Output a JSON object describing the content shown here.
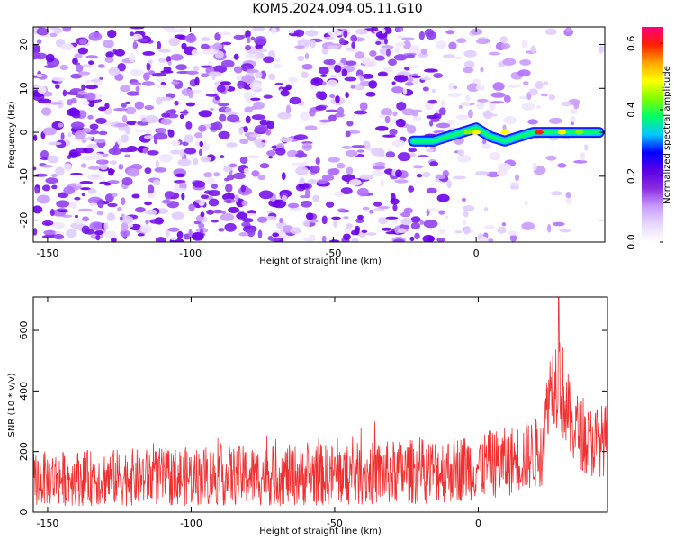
{
  "title": "KOM5.2024.094.05.11.G10",
  "chart_data": [
    {
      "type": "heatmap",
      "xlabel": "Height of straight line (km)",
      "ylabel": "Frequency (Hz)",
      "xlim": [
        -155,
        45
      ],
      "ylim": [
        -25,
        24
      ],
      "xticks": [
        -150,
        -100,
        -50,
        0
      ],
      "yticks": [
        -20,
        -10,
        0,
        10,
        20
      ],
      "colorbar": {
        "label": "Normalized spectral amplitude",
        "range": [
          0,
          0.65
        ],
        "ticks": [
          "0.0",
          "0.2",
          "0.4",
          "0.6"
        ],
        "colormap": [
          "#ffffff",
          "#e8d8ff",
          "#c89bff",
          "#8a2be2",
          "#5a00e6",
          "#0000ff",
          "#00c8ff",
          "#00ff66",
          "#7fff00",
          "#ffff00",
          "#ffa500",
          "#ff2000",
          "#ff0080"
        ]
      },
      "signal_track": {
        "description": "strong signal near 0 Hz from about -20 km to 43 km",
        "points": [
          [
            -22,
            -2
          ],
          [
            -15,
            -2
          ],
          [
            -10,
            -1
          ],
          [
            -5,
            0
          ],
          [
            0,
            1
          ],
          [
            5,
            -1
          ],
          [
            10,
            -2
          ],
          [
            15,
            -1
          ],
          [
            20,
            0
          ],
          [
            25,
            0
          ],
          [
            30,
            0
          ],
          [
            35,
            0
          ],
          [
            40,
            0
          ],
          [
            43,
            0
          ]
        ]
      }
    },
    {
      "type": "line",
      "xlabel": "Height of straight line (km)",
      "ylabel": "SNR (10 * v/v)",
      "xlim": [
        -155,
        45
      ],
      "ylim": [
        0,
        710
      ],
      "xticks": [
        -150,
        -100,
        -50,
        0
      ],
      "yticks": [
        0,
        200,
        400,
        600
      ],
      "color": "#f03030",
      "envelope": [
        {
          "x": -155,
          "mean": 110,
          "amp": 90
        },
        {
          "x": -120,
          "mean": 115,
          "amp": 95
        },
        {
          "x": -80,
          "mean": 120,
          "amp": 100
        },
        {
          "x": -40,
          "mean": 125,
          "amp": 105
        },
        {
          "x": -10,
          "mean": 140,
          "amp": 110
        },
        {
          "x": 10,
          "mean": 165,
          "amp": 115
        },
        {
          "x": 22,
          "mean": 200,
          "amp": 120
        },
        {
          "x": 25,
          "mean": 420,
          "amp": 120
        },
        {
          "x": 28,
          "mean": 450,
          "amp": 180
        },
        {
          "x": 32,
          "mean": 300,
          "amp": 130
        },
        {
          "x": 38,
          "mean": 230,
          "amp": 120
        },
        {
          "x": 45,
          "mean": 240,
          "amp": 120
        }
      ],
      "peak": {
        "x": 28,
        "y": 710
      }
    }
  ]
}
